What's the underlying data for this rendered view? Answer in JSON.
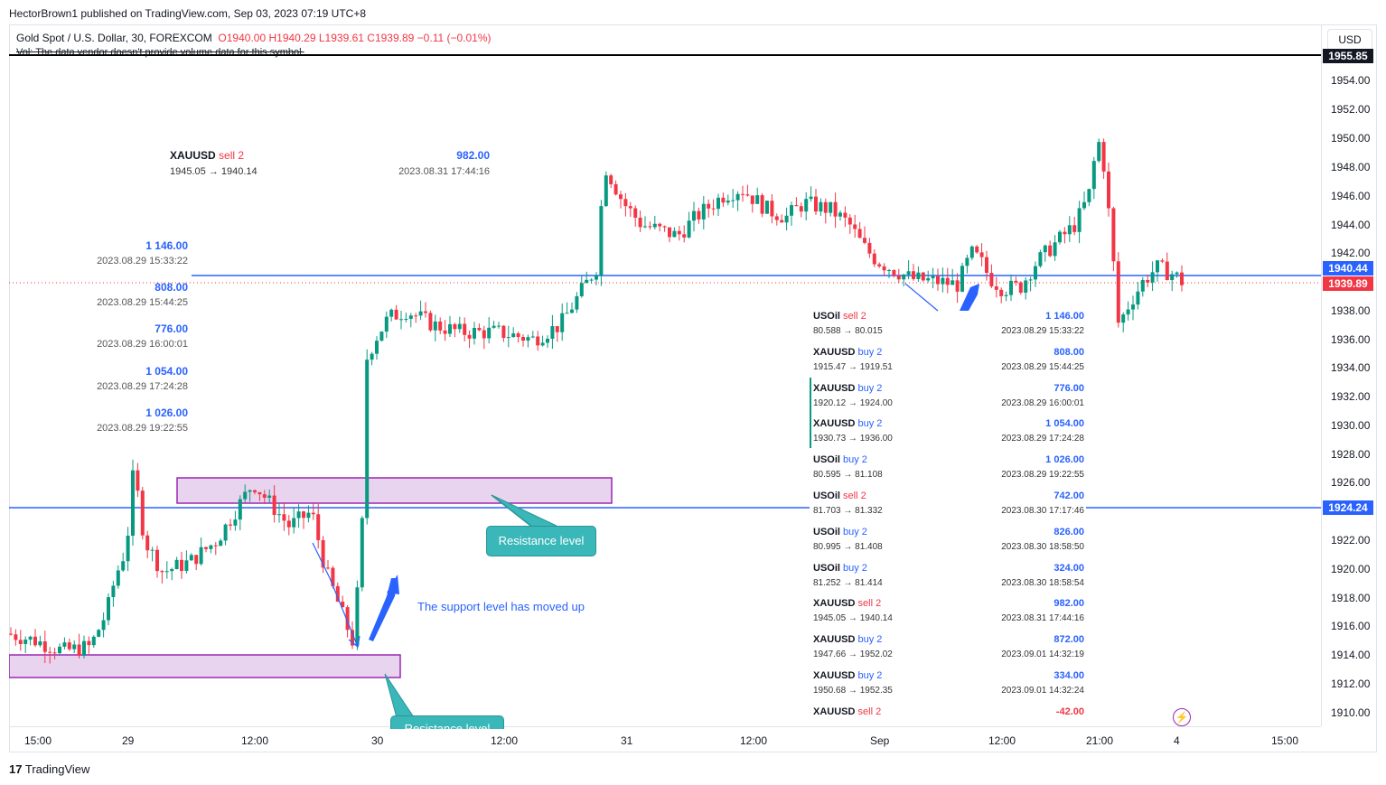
{
  "header": {
    "publish_line": "HectorBrown1 published on TradingView.com, Sep 03, 2023 07:19 UTC+8"
  },
  "legend": {
    "symbol": "Gold Spot / U.S. Dollar, 30, FOREXCOM",
    "open": "O1940.00",
    "high": "H1940.29",
    "low": "L1939.61",
    "close": "C1939.89",
    "change": "−0.11 (−0.01%)",
    "volume_note": "Vol: The data vendor doesn't provide volume data for this symbol."
  },
  "currency_button": "USD",
  "price_scale": {
    "ticks": [
      "1954.00",
      "1952.00",
      "1950.00",
      "1948.00",
      "1946.00",
      "1944.00",
      "1942.00",
      "1940.00",
      "1938.00",
      "1936.00",
      "1934.00",
      "1932.00",
      "1930.00",
      "1928.00",
      "1926.00",
      "1924.00",
      "1922.00",
      "1920.00",
      "1918.00",
      "1916.00",
      "1914.00",
      "1912.00",
      "1910.00"
    ],
    "labels": {
      "top_line": "1955.85",
      "resistance_line": "1940.44",
      "current_price": "1939.89",
      "support_line": "1924.24"
    }
  },
  "time_scale": {
    "ticks": [
      "15:00",
      "29",
      "12:00",
      "30",
      "12:00",
      "31",
      "12:00",
      "Sep",
      "12:00",
      "21:00",
      "4",
      "15:00"
    ]
  },
  "colors": {
    "up": "#089981",
    "down": "#f23645",
    "line": "#2962ff",
    "zone_fill": "#e9d4f0",
    "zone_border": "#9c27b0",
    "callout": "#3ab7b9"
  },
  "top_note": {
    "symbol": "XAUUSD",
    "action": "sell 2",
    "prices": "1945.05 → 1940.14",
    "amount": "982.00",
    "date": "2023.08.31 17:44:16"
  },
  "left_trades": [
    {
      "amount": "1 146.00",
      "date": "2023.08.29 15:33:22"
    },
    {
      "amount": "808.00",
      "date": "2023.08.29 15:44:25"
    },
    {
      "amount": "776.00",
      "date": "2023.08.29 16:00:01"
    },
    {
      "amount": "1 054.00",
      "date": "2023.08.29 17:24:28"
    },
    {
      "amount": "1 026.00",
      "date": "2023.08.29 19:22:55"
    }
  ],
  "trade_table": [
    {
      "symbol": "USOil",
      "action": "sell 2",
      "prices": "80.588 → 80.015",
      "amount": "1 146.00",
      "date": "2023.08.29 15:33:22"
    },
    {
      "symbol": "XAUUSD",
      "action": "buy 2",
      "prices": "1915.47 → 1919.51",
      "amount": "808.00",
      "date": "2023.08.29 15:44:25"
    },
    {
      "symbol": "XAUUSD",
      "action": "buy 2",
      "prices": "1920.12 → 1924.00",
      "amount": "776.00",
      "date": "2023.08.29 16:00:01"
    },
    {
      "symbol": "XAUUSD",
      "action": "buy 2",
      "prices": "1930.73 → 1936.00",
      "amount": "1 054.00",
      "date": "2023.08.29 17:24:28"
    },
    {
      "symbol": "USOil",
      "action": "buy 2",
      "prices": "80.595 → 81.108",
      "amount": "1 026.00",
      "date": "2023.08.29 19:22:55"
    },
    {
      "symbol": "USOil",
      "action": "sell 2",
      "prices": "81.703 → 81.332",
      "amount": "742.00",
      "date": "2023.08.30 17:17:46"
    },
    {
      "symbol": "USOil",
      "action": "buy 2",
      "prices": "80.995 → 81.408",
      "amount": "826.00",
      "date": "2023.08.30 18:58:50"
    },
    {
      "symbol": "USOil",
      "action": "buy 2",
      "prices": "81.252 → 81.414",
      "amount": "324.00",
      "date": "2023.08.30 18:58:54"
    },
    {
      "symbol": "XAUUSD",
      "action": "sell 2",
      "prices": "1945.05 → 1940.14",
      "amount": "982.00",
      "date": "2023.08.31 17:44:16"
    },
    {
      "symbol": "XAUUSD",
      "action": "buy 2",
      "prices": "1947.66 → 1952.02",
      "amount": "872.00",
      "date": "2023.09.01 14:32:19"
    },
    {
      "symbol": "XAUUSD",
      "action": "buy 2",
      "prices": "1950.68 → 1952.35",
      "amount": "334.00",
      "date": "2023.09.01 14:32:24"
    },
    {
      "symbol": "XAUUSD",
      "action": "sell 2",
      "prices": "",
      "amount": "-42.00",
      "date": ""
    }
  ],
  "annotations": {
    "resistance": "Resistance level",
    "support_moved": "The support level has moved up",
    "support_cut": "Resistance level"
  },
  "footer": {
    "brand": "TradingView",
    "logo": "17"
  }
}
